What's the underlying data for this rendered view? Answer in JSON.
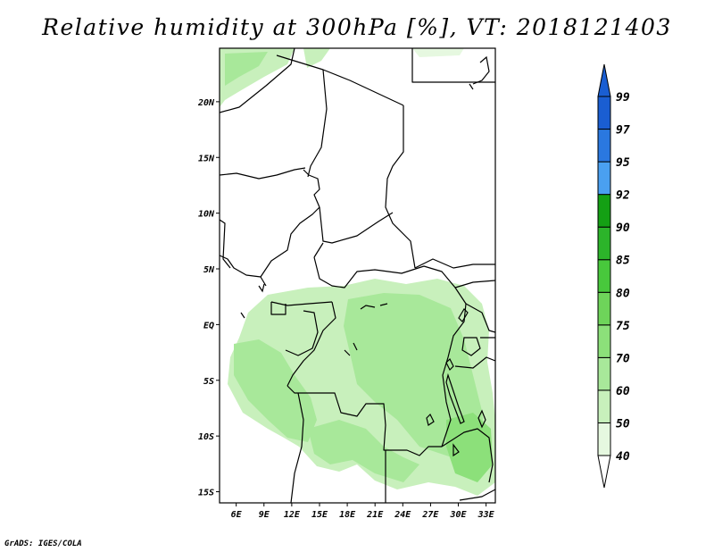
{
  "title": "Relative humidity at 300hPa [%], VT: 2018121403",
  "footer": "GrADS: IGES/COLA",
  "map": {
    "lat_ticks": [
      {
        "value": 20,
        "label": "20N"
      },
      {
        "value": 15,
        "label": "15N"
      },
      {
        "value": 10,
        "label": "10N"
      },
      {
        "value": 5,
        "label": "5N"
      },
      {
        "value": 0,
        "label": "EQ"
      },
      {
        "value": -5,
        "label": "5S"
      },
      {
        "value": -10,
        "label": "10S"
      },
      {
        "value": -15,
        "label": "15S"
      }
    ],
    "lon_ticks": [
      {
        "value": 6,
        "label": "6E"
      },
      {
        "value": 9,
        "label": "9E"
      },
      {
        "value": 12,
        "label": "12E"
      },
      {
        "value": 15,
        "label": "15E"
      },
      {
        "value": 18,
        "label": "18E"
      },
      {
        "value": 21,
        "label": "21E"
      },
      {
        "value": 24,
        "label": "24E"
      },
      {
        "value": 27,
        "label": "27E"
      },
      {
        "value": 30,
        "label": "30E"
      },
      {
        "value": 33,
        "label": "33E"
      }
    ],
    "lon_range": [
      4.2,
      34.0
    ],
    "lat_range": [
      -16.0,
      24.8
    ]
  },
  "colorbar": {
    "levels": [
      "40",
      "50",
      "60",
      "70",
      "75",
      "80",
      "85",
      "90",
      "92",
      "95",
      "97",
      "99"
    ],
    "colors": [
      "#ffffff",
      "#e6f8e0",
      "#c8f0bc",
      "#a8e89a",
      "#8ce07a",
      "#6ed45a",
      "#48c83c",
      "#2cb42a",
      "#14a014",
      "#4aa0f0",
      "#2a78e0",
      "#1a5ed2"
    ]
  }
}
